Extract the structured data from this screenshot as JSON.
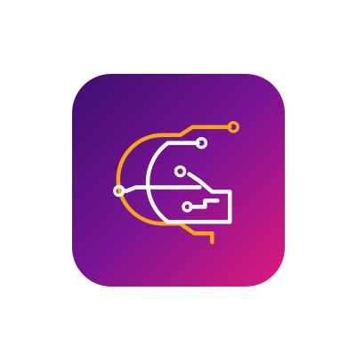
{
  "icon": {
    "name": "circuit-letter-g-app-icon",
    "colors": {
      "gradient_start": "#3b0f6e",
      "gradient_mid": "#7a1494",
      "gradient_end": "#e01a7a",
      "outer_circuit": "#f5a515",
      "inner_circuit": "#ffffff"
    }
  }
}
